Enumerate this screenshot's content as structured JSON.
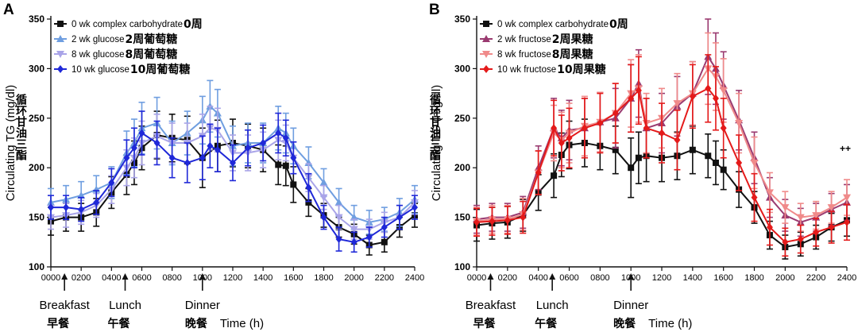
{
  "chart_data": [
    {
      "type": "line",
      "panel_label": "A",
      "ylabel": "Circulating TG (mg/dl)",
      "ylabel_cn": "循环甘油三酯",
      "xlabel": "Time (h)",
      "ylim": [
        100,
        350
      ],
      "yticks": [
        100,
        150,
        200,
        250,
        300,
        350
      ],
      "xlim": [
        0,
        2400
      ],
      "xticks": [
        "0000",
        "0200",
        "0400",
        "0600",
        "0800",
        "1000",
        "1200",
        "1400",
        "1600",
        "1800",
        "2000",
        "2200",
        "2400"
      ],
      "grid": false,
      "legend_position": "top-left",
      "meals": [
        {
          "label": "Breakfast",
          "label_cn": "早餐",
          "time": 90
        },
        {
          "label": "Lunch",
          "label_cn": "午餐",
          "time": 490
        },
        {
          "label": "Dinner",
          "label_cn": "晚餐",
          "time": 1000
        }
      ],
      "series": [
        {
          "name": "0 wk complex carbohydrate",
          "name_cn": "0周",
          "color": "#111111",
          "marker": "square",
          "x": [
            0,
            100,
            200,
            300,
            400,
            500,
            550,
            600,
            700,
            800,
            900,
            1000,
            1100,
            1200,
            1300,
            1400,
            1500,
            1550,
            1600,
            1700,
            1800,
            1900,
            2000,
            2100,
            2200,
            2300,
            2400
          ],
          "y": [
            146,
            150,
            150,
            155,
            175,
            193,
            205,
            220,
            233,
            230,
            228,
            210,
            222,
            225,
            222,
            218,
            203,
            202,
            183,
            165,
            152,
            140,
            133,
            122,
            125,
            140,
            152
          ],
          "err": [
            14,
            14,
            14,
            14,
            16,
            20,
            22,
            22,
            24,
            24,
            24,
            30,
            26,
            24,
            22,
            22,
            20,
            20,
            18,
            14,
            12,
            10,
            10,
            10,
            10,
            10,
            12
          ]
        },
        {
          "name": "2 wk glucose",
          "name_cn": "2周葡萄糖",
          "color": "#6f9ee0",
          "marker": "triangle",
          "x": [
            0,
            100,
            200,
            300,
            400,
            500,
            550,
            600,
            700,
            800,
            900,
            1000,
            1050,
            1100,
            1200,
            1300,
            1400,
            1500,
            1550,
            1600,
            1700,
            1800,
            1900,
            2000,
            2100,
            2200,
            2300,
            2400
          ],
          "y": [
            165,
            168,
            172,
            178,
            185,
            215,
            225,
            240,
            245,
            225,
            235,
            248,
            262,
            255,
            222,
            225,
            225,
            240,
            235,
            222,
            205,
            185,
            165,
            150,
            145,
            148,
            155,
            168
          ],
          "err": [
            14,
            14,
            14,
            14,
            16,
            22,
            24,
            26,
            26,
            22,
            22,
            24,
            26,
            24,
            20,
            20,
            20,
            22,
            20,
            18,
            16,
            14,
            14,
            12,
            12,
            12,
            14,
            14
          ]
        },
        {
          "name": "8 wk glucose",
          "name_cn": "8周葡萄糖",
          "color": "#a9a4e8",
          "marker": "triangle-down",
          "x": [
            0,
            100,
            200,
            300,
            400,
            500,
            550,
            600,
            700,
            800,
            900,
            1000,
            1050,
            1100,
            1200,
            1300,
            1400,
            1500,
            1550,
            1600,
            1700,
            1800,
            1900,
            2000,
            2100,
            2200,
            2300,
            2400
          ],
          "y": [
            150,
            152,
            155,
            162,
            178,
            200,
            210,
            225,
            232,
            225,
            225,
            232,
            240,
            238,
            215,
            215,
            218,
            228,
            225,
            210,
            190,
            170,
            150,
            138,
            138,
            145,
            150,
            165
          ],
          "err": [
            12,
            12,
            12,
            12,
            14,
            18,
            20,
            22,
            22,
            20,
            20,
            22,
            22,
            22,
            18,
            18,
            18,
            20,
            18,
            16,
            14,
            12,
            12,
            10,
            10,
            10,
            12,
            12
          ]
        },
        {
          "name": "10 wk glucose",
          "name_cn": "10周葡萄糖",
          "color": "#1f28d8",
          "marker": "diamond",
          "x": [
            0,
            100,
            200,
            300,
            400,
            500,
            550,
            600,
            700,
            800,
            900,
            1000,
            1050,
            1100,
            1200,
            1300,
            1400,
            1500,
            1550,
            1600,
            1700,
            1800,
            1900,
            2000,
            2100,
            2200,
            2300,
            2400
          ],
          "y": [
            160,
            160,
            158,
            165,
            185,
            210,
            220,
            235,
            225,
            210,
            205,
            210,
            222,
            218,
            205,
            220,
            225,
            235,
            230,
            210,
            180,
            150,
            128,
            125,
            130,
            140,
            150,
            160
          ],
          "err": [
            12,
            12,
            12,
            12,
            14,
            18,
            20,
            22,
            22,
            20,
            20,
            22,
            22,
            22,
            18,
            18,
            18,
            20,
            18,
            16,
            14,
            12,
            12,
            10,
            10,
            10,
            12,
            12
          ]
        }
      ]
    },
    {
      "type": "line",
      "panel_label": "B",
      "ylabel": "Circulating TG (mg/dl)",
      "ylabel_cn": "循环甘油三酯",
      "xlabel": "Time (h)",
      "ylim": [
        100,
        350
      ],
      "yticks": [
        100,
        150,
        200,
        250,
        300,
        350
      ],
      "xlim": [
        0,
        2400
      ],
      "xticks": [
        "0000",
        "0200",
        "0400",
        "0600",
        "0800",
        "1000",
        "1200",
        "1400",
        "1600",
        "1800",
        "2000",
        "2200",
        "2400"
      ],
      "grid": false,
      "legend_position": "top-left",
      "annotation": "++",
      "meals": [
        {
          "label": "Breakfast",
          "label_cn": "早餐",
          "time": 90
        },
        {
          "label": "Lunch",
          "label_cn": "午餐",
          "time": 490
        },
        {
          "label": "Dinner",
          "label_cn": "晚餐",
          "time": 1000
        }
      ],
      "series": [
        {
          "name": "0 wk complex carbohydrate",
          "name_cn": "0周",
          "color": "#111111",
          "marker": "square",
          "x": [
            0,
            100,
            200,
            300,
            400,
            500,
            550,
            600,
            700,
            800,
            900,
            1000,
            1050,
            1100,
            1200,
            1300,
            1400,
            1500,
            1550,
            1600,
            1700,
            1800,
            1900,
            2000,
            2100,
            2200,
            2300,
            2400
          ],
          "y": [
            142,
            144,
            145,
            152,
            175,
            192,
            213,
            223,
            225,
            222,
            218,
            200,
            210,
            212,
            210,
            212,
            218,
            212,
            205,
            198,
            178,
            160,
            132,
            120,
            123,
            130,
            140,
            147
          ],
          "err": [
            16,
            16,
            16,
            16,
            18,
            22,
            22,
            24,
            24,
            24,
            24,
            30,
            26,
            26,
            24,
            24,
            24,
            22,
            22,
            20,
            18,
            16,
            14,
            12,
            12,
            12,
            14,
            16
          ]
        },
        {
          "name": "2 wk fructose",
          "name_cn": "2周果糖",
          "color": "#9a3a70",
          "marker": "triangle",
          "x": [
            0,
            100,
            200,
            300,
            400,
            500,
            550,
            600,
            700,
            800,
            900,
            1000,
            1050,
            1100,
            1200,
            1300,
            1400,
            1500,
            1550,
            1600,
            1700,
            1800,
            1900,
            2000,
            2100,
            2200,
            2300,
            2400
          ],
          "y": [
            148,
            150,
            150,
            155,
            200,
            240,
            230,
            238,
            240,
            246,
            250,
            270,
            285,
            240,
            245,
            262,
            275,
            312,
            300,
            283,
            248,
            210,
            170,
            152,
            145,
            150,
            158,
            165
          ],
          "err": [
            14,
            14,
            14,
            16,
            22,
            30,
            28,
            30,
            30,
            30,
            30,
            34,
            34,
            30,
            30,
            30,
            32,
            38,
            36,
            34,
            30,
            26,
            20,
            16,
            14,
            14,
            16,
            18
          ]
        },
        {
          "name": "8 wk fructose",
          "name_cn": "8周果糖",
          "color": "#f08a8a",
          "marker": "triangle-down",
          "x": [
            0,
            100,
            200,
            300,
            400,
            500,
            550,
            600,
            700,
            800,
            900,
            1000,
            1050,
            1100,
            1200,
            1300,
            1400,
            1500,
            1550,
            1600,
            1700,
            1800,
            1900,
            2000,
            2100,
            2200,
            2300,
            2400
          ],
          "y": [
            146,
            148,
            148,
            153,
            195,
            235,
            228,
            235,
            242,
            246,
            255,
            275,
            280,
            245,
            250,
            265,
            275,
            300,
            292,
            278,
            245,
            205,
            175,
            160,
            150,
            152,
            160,
            170
          ],
          "err": [
            14,
            14,
            14,
            16,
            22,
            28,
            28,
            30,
            30,
            30,
            30,
            34,
            34,
            30,
            30,
            30,
            32,
            36,
            34,
            32,
            30,
            26,
            20,
            16,
            14,
            14,
            16,
            18
          ]
        },
        {
          "name": "10 wk fructose",
          "name_cn": "10周果糖",
          "color": "#e41a1a",
          "marker": "diamond",
          "x": [
            0,
            100,
            200,
            300,
            400,
            500,
            550,
            600,
            700,
            800,
            900,
            1000,
            1050,
            1100,
            1200,
            1300,
            1400,
            1500,
            1550,
            1600,
            1700,
            1800,
            1900,
            2000,
            2100,
            2200,
            2300,
            2400
          ],
          "y": [
            145,
            146,
            147,
            150,
            195,
            240,
            225,
            230,
            240,
            245,
            255,
            270,
            278,
            240,
            235,
            228,
            272,
            280,
            270,
            240,
            205,
            170,
            140,
            125,
            128,
            135,
            140,
            145
          ],
          "err": [
            14,
            14,
            14,
            16,
            22,
            28,
            28,
            30,
            30,
            30,
            30,
            34,
            34,
            30,
            30,
            30,
            32,
            34,
            32,
            30,
            28,
            24,
            18,
            14,
            14,
            14,
            16,
            18
          ]
        }
      ]
    }
  ]
}
